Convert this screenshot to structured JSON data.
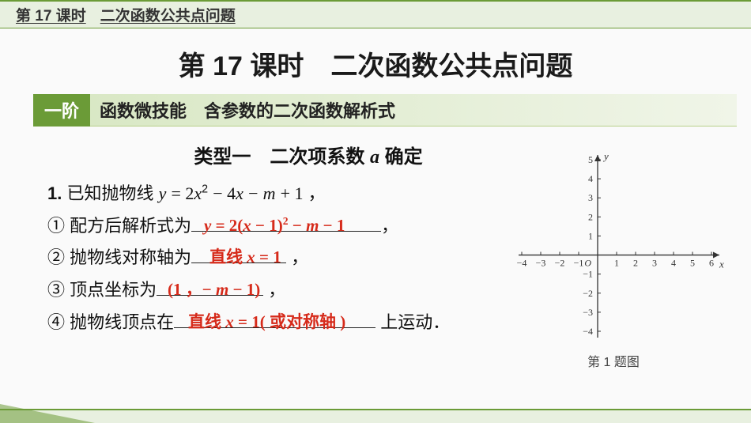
{
  "header": {
    "lesson": "第 17 课时",
    "topic": "二次函数公共点问题"
  },
  "title": "第 17 课时　二次函数公共点问题",
  "subbar": {
    "stage": "一阶",
    "skill": "函数微技能　含参数的二次函数解析式"
  },
  "type_title_prefix": "类型一　二次项系数 ",
  "type_title_var": "a",
  "type_title_suffix": " 确定",
  "problem": {
    "stem_num": "1.",
    "stem_text_a": " 已知抛物线 ",
    "stem_eq": "y = 2x² − 4x − m + 1",
    "stem_tail": " ，",
    "q1_label": "① 配方后解析式为",
    "q1_blank_width": 240,
    "q1_comma": "，",
    "q1_answer": "y = 2(x − 1)² − m − 1",
    "q2_label": "② 抛物线对称轴为",
    "q2_blank_width": 120,
    "q2_tail": " ，",
    "q2_answer": "直线 x = 1",
    "q3_label": "③ 顶点坐标为",
    "q3_blank_width": 135,
    "q3_tail": " ，",
    "q3_answer": "(1 ，− m − 1)",
    "q4_label": "④ 抛物线顶点在",
    "q4_blank_width": 255,
    "q4_tail": " 上运动．",
    "q4_answer": "直线 x = 1( 或对称轴 )"
  },
  "graph": {
    "caption": "第 1 题图",
    "x_min": -4,
    "x_max": 6,
    "y_min": -4,
    "y_max": 5,
    "x_ticks": [
      -4,
      -3,
      -2,
      -1,
      1,
      2,
      3,
      4,
      5,
      6
    ],
    "y_ticks": [
      -4,
      -3,
      -2,
      -1,
      1,
      2,
      3,
      4,
      5
    ],
    "axis_color": "#333333",
    "tick_len": 4,
    "font_size": 12,
    "label_x": "x",
    "label_y": "y",
    "origin_label": "O"
  },
  "colors": {
    "accent_green": "#6b9b37",
    "light_green": "#e8f0e0",
    "answer_red": "#d62a1a",
    "text": "#111111"
  }
}
